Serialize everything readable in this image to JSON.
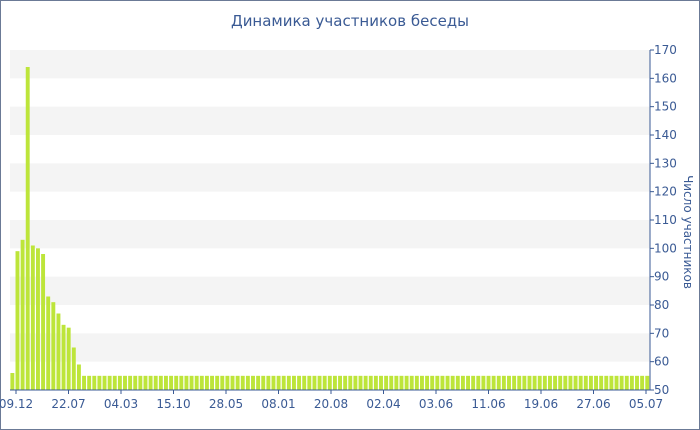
{
  "chart_data": {
    "type": "bar",
    "title": "Динамика участников беседы",
    "ylabel": "Число участников",
    "xlabel": "",
    "ylim": [
      50,
      170
    ],
    "yticks": [
      50,
      60,
      70,
      80,
      90,
      100,
      110,
      120,
      130,
      140,
      150,
      160,
      170
    ],
    "xtick_labels": [
      "09.12",
      "22.07",
      "04.03",
      "15.10",
      "28.05",
      "08.01",
      "20.08",
      "02.04",
      "03.06",
      "11.06",
      "19.06",
      "27.06",
      "05.07"
    ],
    "grid": "horizontal bands",
    "bar_color": "#bde53a",
    "values": [
      56,
      99,
      103,
      164,
      101,
      100,
      98,
      83,
      81,
      77,
      73,
      72,
      65,
      59,
      55,
      55,
      55,
      55,
      55,
      55,
      55,
      55,
      55,
      55,
      55,
      55,
      55,
      55,
      55,
      55,
      55,
      55,
      55,
      55,
      55,
      55,
      55,
      55,
      55,
      55,
      55,
      55,
      55,
      55,
      55,
      55,
      55,
      55,
      55,
      55,
      55,
      55,
      55,
      55,
      55,
      55,
      55,
      55,
      55,
      55,
      55,
      55,
      55,
      55,
      55,
      55,
      55,
      55,
      55,
      55,
      55,
      55,
      55,
      55,
      55,
      55,
      55,
      55,
      55,
      55,
      55,
      55,
      55,
      55,
      55,
      55,
      55,
      55,
      55,
      55,
      55,
      55,
      55,
      55,
      55,
      55,
      55,
      55,
      55,
      55,
      55,
      55,
      55,
      55,
      55,
      55,
      55,
      55,
      55,
      55,
      55,
      55,
      55,
      55,
      55,
      55,
      55,
      55,
      55,
      55,
      55,
      55,
      55,
      55,
      55
    ]
  }
}
